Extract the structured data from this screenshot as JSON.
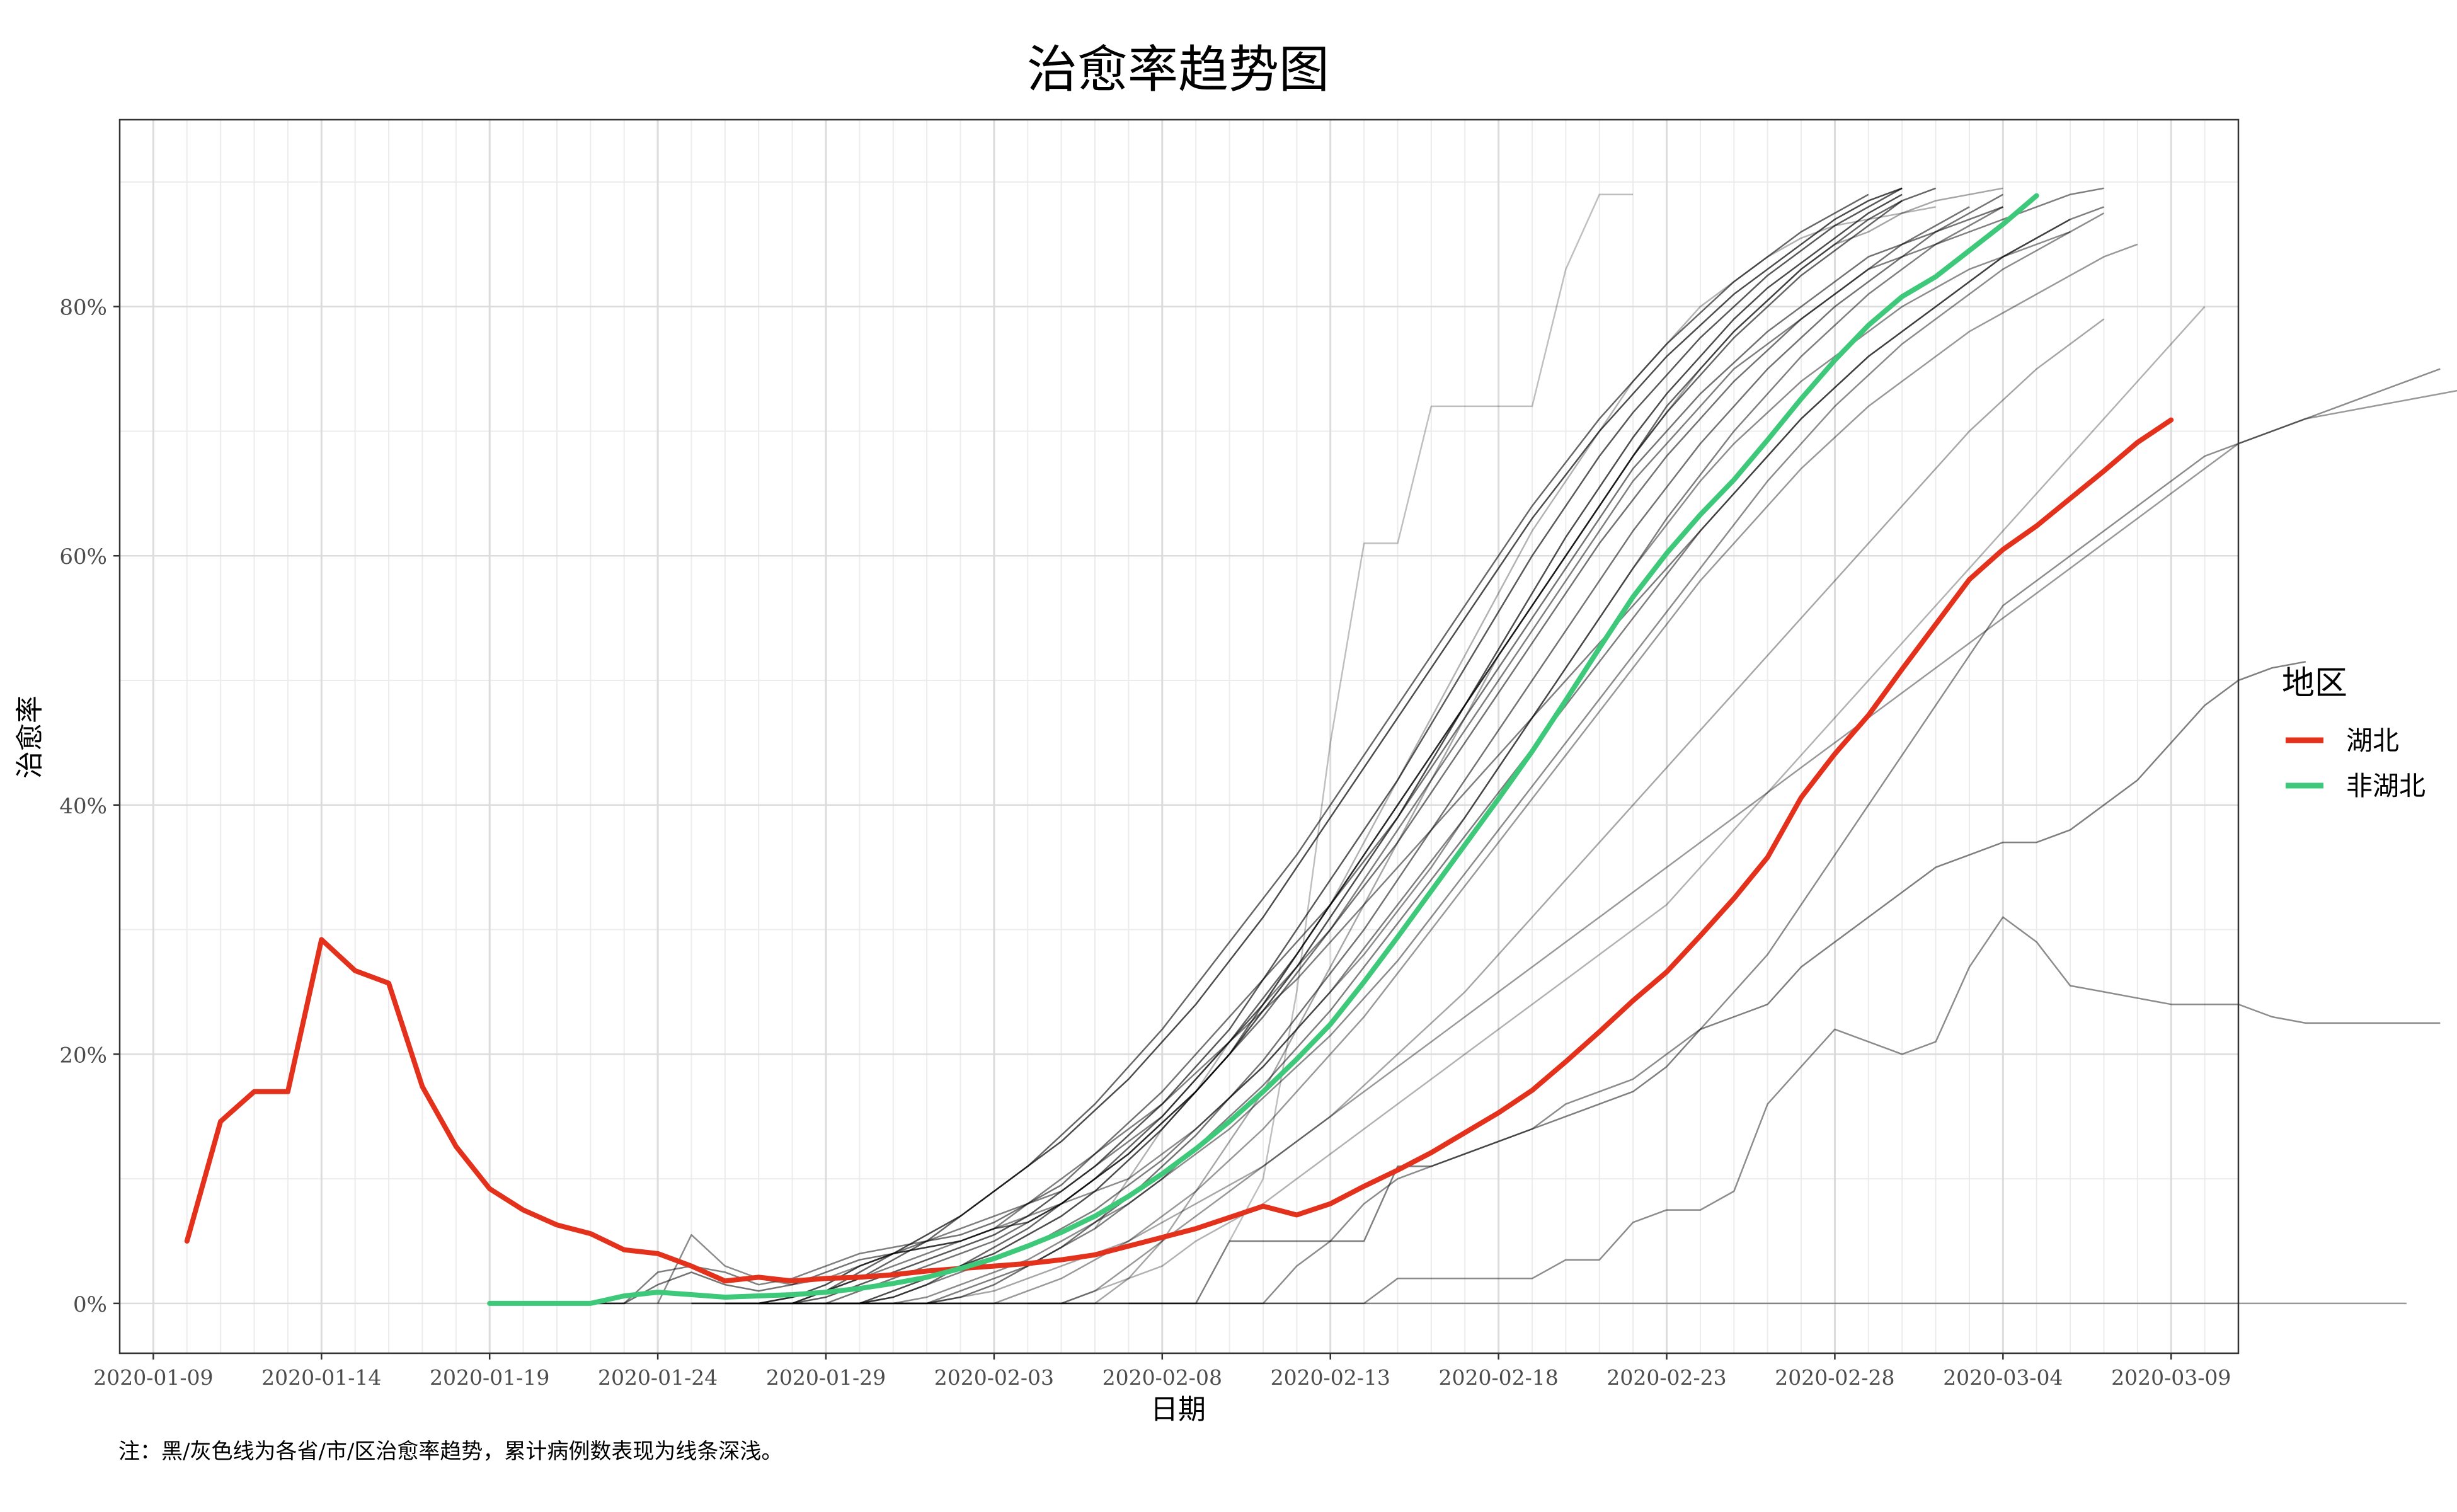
{
  "chart_data": {
    "type": "line",
    "title": "治愈率趋势图",
    "xlabel": "日期",
    "ylabel": "治愈率",
    "caption": "注：黑/灰色线为各省/市/区治愈率趋势，累计病例数表现为线条深浅。",
    "x_ticks": [
      "2020-01-09",
      "2020-01-14",
      "2020-01-19",
      "2020-01-24",
      "2020-01-29",
      "2020-02-03",
      "2020-02-08",
      "2020-02-13",
      "2020-02-18",
      "2020-02-23",
      "2020-02-28",
      "2020-03-04",
      "2020-03-09"
    ],
    "y_ticks": [
      "0%",
      "20%",
      "40%",
      "60%",
      "80%"
    ],
    "xlim": [
      "2020-01-08",
      "2020-03-11"
    ],
    "ylim": [
      -4,
      95
    ],
    "grid": true,
    "legend": {
      "title": "地区",
      "placement": "right",
      "entries": [
        {
          "label": "湖北",
          "color": "#e3311c"
        },
        {
          "label": "非湖北",
          "color": "#3ec97a"
        }
      ]
    },
    "series": [
      {
        "name": "湖北",
        "color": "#e3311c",
        "start": "2020-01-10",
        "values": [
          5,
          14.6,
          17,
          17,
          29.2,
          26.7,
          25.7,
          17.4,
          12.6,
          9.2,
          7.5,
          6.3,
          5.6,
          4.3,
          4,
          3,
          1.8,
          2.1,
          1.8,
          2,
          2.1,
          2.3,
          2.6,
          2.8,
          3,
          3.2,
          3.5,
          3.9,
          4.6,
          5.3,
          6,
          6.9,
          7.8,
          7.1,
          8,
          9.4,
          10.7,
          12.1,
          13.7,
          15.3,
          17.1,
          19.4,
          21.8,
          24.3,
          26.6,
          29.5,
          32.5,
          35.8,
          40.6,
          44.1,
          47.2,
          50.9,
          54.5,
          58.1,
          60.5,
          62.4,
          64.6,
          66.8,
          69.1,
          70.9
        ]
      },
      {
        "name": "非湖北",
        "color": "#3ec97a",
        "start": "2020-01-19",
        "values": [
          0,
          0,
          0,
          0,
          0.6,
          0.9,
          0.7,
          0.5,
          0.6,
          0.7,
          0.9,
          1.2,
          1.6,
          2.1,
          2.8,
          3.6,
          4.6,
          5.7,
          7,
          8.6,
          10.4,
          12.4,
          14.6,
          17,
          19.6,
          22.4,
          25.8,
          29.4,
          33.1,
          36.8,
          40.5,
          44.3,
          48.4,
          52.6,
          56.7,
          60.2,
          63.3,
          66.1,
          69.3,
          72.6,
          75.7,
          78.5,
          80.8,
          82.4,
          84.5,
          86.6,
          88.9
        ]
      }
    ],
    "background_lines": [
      {
        "start": "2020-01-22",
        "opacity": 0.5,
        "values": [
          0,
          0,
          2.5,
          3,
          2.5,
          1.5,
          2,
          3,
          4,
          4.5,
          5,
          6,
          7,
          8,
          9,
          11,
          13,
          15,
          18,
          21,
          24,
          27,
          30,
          34,
          38,
          42,
          46,
          50,
          54,
          58,
          62,
          66,
          69,
          72,
          75,
          77,
          79,
          81,
          83,
          84,
          85,
          86,
          87,
          88,
          89,
          89.5
        ]
      },
      {
        "start": "2020-01-22",
        "opacity": 0.55,
        "values": [
          0,
          0,
          1.5,
          2.5,
          1.5,
          1,
          1.5,
          2.5,
          3.5,
          4,
          5,
          5.5,
          6.5,
          8,
          9.5,
          12,
          14.5,
          17,
          20,
          23,
          26,
          29,
          32,
          35.5,
          39,
          43,
          47,
          51,
          55,
          59,
          63,
          67,
          70,
          73,
          75.5,
          78,
          80,
          82,
          84,
          85,
          86,
          87,
          88
        ]
      },
      {
        "start": "2020-01-24",
        "opacity": 0.45,
        "values": [
          0,
          5.5,
          3,
          2,
          1.5,
          2,
          3,
          4,
          4.5,
          5,
          6,
          7,
          8,
          9,
          10,
          12,
          14,
          16.5,
          19,
          22,
          25,
          28,
          31.5,
          35,
          39,
          43,
          47,
          51,
          55,
          59,
          62.5,
          66,
          69,
          71.5,
          74,
          76,
          78,
          80,
          81.5,
          83,
          84,
          85,
          86
        ]
      },
      {
        "start": "2020-01-27",
        "opacity": 0.6,
        "values": [
          0,
          0,
          1,
          2.5,
          4,
          4.5,
          5,
          6,
          6.5,
          8,
          10,
          12,
          14.5,
          17,
          20,
          24,
          28,
          32,
          36,
          40,
          44,
          48,
          52,
          56,
          60,
          64,
          68,
          72,
          75,
          78,
          80.5,
          83,
          85,
          87,
          88.5,
          89.5
        ]
      },
      {
        "start": "2020-01-27",
        "opacity": 0.65,
        "values": [
          0,
          0,
          0.5,
          1.5,
          2.5,
          3.5,
          4.5,
          5.5,
          7,
          9,
          11,
          13.5,
          16,
          19,
          22,
          26,
          30,
          34,
          38,
          42,
          46.5,
          51,
          55.5,
          60,
          64,
          68,
          71.5,
          74.5,
          77.5,
          80,
          82.5,
          84.5,
          86.5,
          88,
          89.5
        ]
      },
      {
        "start": "2020-01-27",
        "opacity": 0.55,
        "values": [
          0,
          0,
          0,
          1,
          2,
          3,
          4,
          5,
          6.5,
          8,
          10,
          12,
          14.5,
          17,
          20,
          23,
          26.5,
          30,
          33.5,
          37,
          41,
          45,
          49,
          53,
          57,
          61,
          64.5,
          68,
          71,
          74,
          76.5,
          79,
          81,
          83,
          85,
          86.5,
          88
        ]
      },
      {
        "start": "2020-01-28",
        "opacity": 0.7,
        "values": [
          0,
          0,
          0,
          1,
          2,
          3,
          4,
          5.5,
          7,
          9,
          11.5,
          14,
          17,
          20,
          23.5,
          27,
          31,
          35,
          39,
          43.5,
          48,
          52.5,
          57,
          61.5,
          65.5,
          69.5,
          73,
          76,
          79,
          81.5,
          83.5,
          85.5,
          87.5,
          89
        ]
      },
      {
        "start": "2020-01-28",
        "opacity": 0.5,
        "values": [
          0,
          0,
          0,
          0.5,
          1.5,
          2.5,
          3.5,
          4.5,
          6,
          7.5,
          9.5,
          11.5,
          14,
          16.5,
          19,
          22,
          25,
          28.5,
          32,
          35.5,
          39,
          43,
          47,
          51,
          55,
          59,
          63,
          66.5,
          70,
          73,
          76,
          78.5,
          81,
          83,
          85,
          86.5,
          88
        ]
      },
      {
        "start": "2020-01-29",
        "opacity": 0.6,
        "values": [
          0,
          0,
          0.5,
          1.5,
          3,
          4.5,
          6,
          8,
          10,
          12.5,
          15,
          18,
          21,
          24.5,
          28,
          32,
          36,
          40,
          44,
          48,
          52,
          56,
          60,
          64,
          68,
          71.5,
          74.5,
          77.5,
          80,
          82.5,
          84.5,
          86.5,
          88.5
        ]
      },
      {
        "start": "2020-01-29",
        "opacity": 0.45,
        "values": [
          0,
          0,
          0,
          0.5,
          1.5,
          2.5,
          3.5,
          5,
          6.5,
          8,
          10,
          12,
          14,
          16.5,
          19,
          21.5,
          24.5,
          27.5,
          31,
          34.5,
          38,
          41.5,
          45,
          48.5,
          52,
          55.5,
          59,
          62.5,
          66,
          69,
          72,
          74.5,
          77,
          79,
          81,
          83,
          84.5,
          86,
          87.5
        ]
      },
      {
        "start": "2020-01-30",
        "opacity": 0.5,
        "values": [
          0,
          0,
          0,
          1,
          2,
          3,
          4.5,
          6,
          8,
          10,
          12.5,
          15,
          17.5,
          20.5,
          23.5,
          27,
          30.5,
          34,
          37.5,
          41,
          44.5,
          48,
          51.5,
          55,
          58.5,
          62,
          65,
          68,
          71,
          73.5,
          76,
          78,
          80,
          82,
          84,
          85.5,
          87
        ]
      },
      {
        "start": "2020-01-30",
        "opacity": 0.35,
        "values": [
          0,
          0,
          0,
          0.5,
          1,
          2,
          3,
          4,
          5,
          6.5,
          8,
          9.5,
          11,
          13,
          15,
          17.5,
          20,
          22.5,
          25,
          28,
          31,
          34,
          37,
          40,
          43,
          46,
          49,
          52,
          55,
          58,
          61,
          64,
          67,
          70,
          72.5,
          75,
          77,
          79
        ]
      },
      {
        "start": "2020-01-31",
        "opacity": 0.55,
        "values": [
          0,
          0,
          0.5,
          1.5,
          3,
          4.5,
          6.5,
          8.5,
          11,
          13.5,
          16.5,
          19.5,
          23,
          26.5,
          30,
          34,
          38,
          42,
          46,
          50,
          54,
          58,
          62,
          65.5,
          69,
          72,
          75,
          77.5,
          80,
          82,
          84,
          86,
          87.5,
          89
        ]
      },
      {
        "start": "2020-02-01",
        "opacity": 0.4,
        "values": [
          0,
          0,
          0,
          1,
          2,
          3.5,
          5,
          7,
          9,
          11.5,
          14,
          17,
          20,
          23,
          26.5,
          30,
          33.5,
          37,
          40.5,
          44,
          47.5,
          51,
          54.5,
          58,
          61,
          64,
          67,
          69.5,
          72,
          74,
          76,
          78,
          79.5,
          81,
          82.5,
          84,
          85
        ]
      },
      {
        "start": "2020-02-05",
        "opacity": 0.35,
        "values": [
          0,
          0,
          2,
          5,
          9,
          13,
          17,
          22,
          27,
          32,
          37,
          42,
          47,
          52,
          56,
          60,
          64,
          68,
          71.5,
          75,
          78,
          80.5,
          83,
          85,
          86,
          87.5,
          88.5,
          89,
          89.5
        ]
      },
      {
        "start": "2020-02-06",
        "opacity": 0.3,
        "values": [
          6,
          10,
          14,
          17,
          21,
          24,
          28,
          32,
          37,
          42,
          47,
          52,
          57,
          62,
          66,
          70,
          74,
          77,
          80,
          82,
          84,
          85.5,
          86.5,
          87,
          87.5,
          88
        ]
      },
      {
        "start": "2020-02-10",
        "opacity": 0.25,
        "values": [
          5,
          10,
          25,
          45,
          61,
          61,
          72,
          72,
          72,
          72,
          83,
          89,
          89
        ]
      },
      {
        "start": "2020-02-04",
        "opacity": 0.4,
        "values": [
          0,
          0,
          1,
          3,
          5,
          7,
          9,
          11,
          13,
          15,
          17,
          19,
          21,
          23,
          25,
          27,
          29,
          31,
          33,
          35,
          37,
          39,
          41,
          43,
          45,
          47,
          49,
          51,
          53,
          55,
          57,
          59,
          61,
          63,
          65,
          67,
          69,
          70,
          71,
          71.5,
          72,
          72.5,
          73,
          73.5
        ]
      },
      {
        "start": "2020-02-07",
        "opacity": 0.45,
        "values": [
          0,
          0,
          0,
          0,
          0,
          3,
          5,
          8,
          10,
          11,
          12,
          13,
          14,
          16,
          17,
          18,
          20,
          22,
          25,
          28,
          32,
          36,
          40,
          44,
          48,
          52,
          56,
          58,
          60,
          62,
          64,
          66,
          68,
          69,
          70,
          71,
          72,
          73,
          74,
          75
        ]
      },
      {
        "start": "2020-01-25",
        "opacity": 0.45,
        "values": [
          0,
          0,
          0,
          0,
          0,
          0,
          0,
          0,
          0,
          0,
          0,
          0,
          0,
          0,
          0,
          0,
          0,
          0,
          0,
          0,
          0,
          2,
          2,
          2,
          2,
          2,
          3.5,
          3.5,
          6.5,
          7.5,
          7.5,
          9,
          16,
          19,
          22,
          21,
          20,
          21,
          27,
          31,
          29,
          25.5,
          25,
          24.5,
          24,
          24,
          24,
          23,
          22.5,
          22.5,
          22.5,
          22.5,
          22.5
        ]
      },
      {
        "start": "2020-01-27",
        "opacity": 0.4,
        "values": [
          0,
          0,
          0,
          0,
          0,
          0,
          0,
          0,
          0,
          0,
          0,
          0,
          0,
          0,
          0,
          0,
          0,
          0,
          0,
          0,
          0,
          0,
          0,
          0,
          0,
          0,
          0,
          0,
          0,
          0,
          0,
          0,
          0,
          0,
          0,
          0,
          0,
          0,
          0,
          0,
          0,
          0,
          0,
          0,
          0,
          0,
          0,
          0,
          0,
          0
        ]
      },
      {
        "start": "2020-01-20",
        "opacity": 0.5,
        "values": [
          0,
          0,
          0,
          0,
          0,
          0,
          0,
          0,
          0,
          0,
          0,
          0,
          0,
          0,
          0,
          0,
          0,
          0,
          0,
          0,
          0,
          5,
          5,
          5,
          5,
          5,
          11,
          11,
          12,
          13,
          14,
          15,
          16,
          17,
          19,
          22,
          23,
          24,
          27,
          29,
          31,
          33,
          35,
          36,
          37,
          37,
          38,
          40,
          42,
          45,
          48,
          50,
          51,
          51.5
        ]
      },
      {
        "start": "2020-01-26",
        "opacity": 0.7,
        "values": [
          0,
          0,
          0.5,
          1.5,
          3,
          4,
          5.5,
          7,
          9,
          11,
          13,
          15.5,
          18,
          21,
          24,
          27.5,
          31,
          35,
          39,
          43,
          47,
          51,
          55,
          59,
          63,
          66.5,
          70,
          73,
          76,
          78.5,
          81,
          83,
          85,
          87,
          88.5,
          89.5
        ]
      },
      {
        "start": "2020-01-26",
        "opacity": 0.6,
        "values": [
          0,
          0,
          0,
          1,
          2,
          3.5,
          5,
          7,
          9,
          11,
          13.5,
          16,
          19,
          22,
          25.5,
          29,
          32.5,
          36,
          40,
          44,
          48,
          52,
          56,
          60,
          64,
          67.5,
          71,
          74,
          77,
          79.5,
          82,
          84,
          86,
          87.5,
          89
        ]
      },
      {
        "start": "2020-01-25",
        "opacity": 0.5,
        "values": [
          0,
          0,
          0,
          0.5,
          1,
          2,
          3,
          4,
          5,
          6,
          8,
          10,
          12,
          14,
          16,
          18.5,
          21,
          23.5,
          26,
          29,
          32,
          35,
          38,
          41,
          44,
          47,
          50,
          53,
          56,
          59,
          62,
          65,
          68,
          71,
          73.5,
          76,
          78,
          80,
          82,
          84,
          85.5,
          87,
          88
        ]
      },
      {
        "start": "2020-01-28",
        "opacity": 0.3,
        "values": [
          0,
          0,
          0,
          0,
          0,
          0,
          0,
          0,
          0,
          1,
          2,
          3,
          5,
          6.5,
          8,
          10,
          12,
          14,
          16,
          18,
          20,
          22,
          24,
          26,
          28,
          30,
          32,
          35,
          38,
          41,
          44,
          47,
          50,
          53,
          56,
          59,
          62,
          65,
          68,
          71,
          74,
          77,
          80
        ]
      }
    ]
  }
}
